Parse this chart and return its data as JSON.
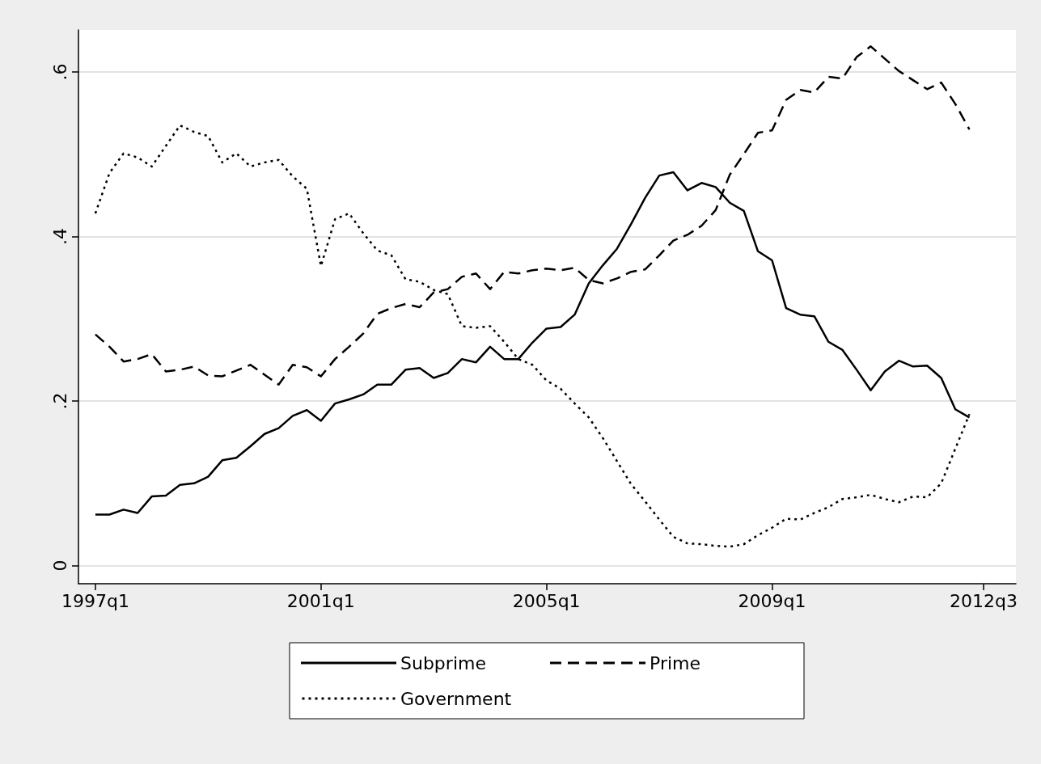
{
  "chart_data": {
    "type": "line",
    "categories": [
      "1997q1",
      null,
      null,
      null,
      null,
      null,
      null,
      null,
      null,
      null,
      null,
      null,
      null,
      null,
      null,
      null,
      "2001q1",
      null,
      null,
      null,
      null,
      null,
      null,
      null,
      null,
      null,
      null,
      null,
      null,
      null,
      null,
      null,
      "2005q1",
      null,
      null,
      null,
      null,
      null,
      null,
      null,
      null,
      null,
      null,
      null,
      null,
      null,
      null,
      null,
      "2009q1",
      null,
      null,
      null,
      null,
      null,
      null,
      null,
      null,
      null,
      null,
      null,
      null,
      null,
      null,
      "2012q3"
    ],
    "series": [
      {
        "name": "Subprime",
        "color": "#000000",
        "line_style": "solid",
        "values": [
          0.062,
          0.062,
          0.068,
          0.064,
          0.084,
          0.085,
          0.098,
          0.1,
          0.108,
          0.128,
          0.131,
          0.145,
          0.16,
          0.167,
          0.182,
          0.189,
          0.176,
          0.197,
          0.202,
          0.208,
          0.22,
          0.22,
          0.238,
          0.24,
          0.228,
          0.234,
          0.251,
          0.247,
          0.266,
          0.251,
          0.251,
          0.271,
          0.288,
          0.29,
          0.305,
          0.343,
          0.365,
          0.385,
          0.415,
          0.447,
          0.474,
          0.478,
          0.456,
          0.465,
          0.46,
          0.441,
          0.431,
          0.382,
          0.371,
          0.313,
          0.305,
          0.303,
          0.272,
          0.262,
          0.238,
          0.213,
          0.236,
          0.249,
          0.242,
          0.243,
          0.228,
          0.19,
          0.18,
          null
        ]
      },
      {
        "name": "Prime",
        "color": "#000000",
        "line_style": "dashed",
        "values": [
          0.281,
          0.266,
          0.248,
          0.251,
          0.257,
          0.236,
          0.238,
          0.242,
          0.231,
          0.23,
          0.237,
          0.244,
          0.232,
          0.22,
          0.244,
          0.241,
          0.23,
          0.251,
          0.266,
          0.282,
          0.306,
          0.313,
          0.318,
          0.314,
          0.332,
          0.336,
          0.351,
          0.355,
          0.336,
          0.357,
          0.355,
          0.359,
          0.361,
          0.359,
          0.362,
          0.347,
          0.343,
          0.349,
          0.357,
          0.36,
          0.377,
          0.395,
          0.402,
          0.413,
          0.432,
          0.475,
          0.5,
          0.526,
          0.529,
          0.566,
          0.578,
          0.575,
          0.594,
          0.592,
          0.618,
          0.631,
          0.616,
          0.601,
          0.59,
          0.579,
          0.587,
          0.561,
          0.53,
          null
        ]
      },
      {
        "name": "Government",
        "color": "#000000",
        "line_style": "dotted",
        "values": [
          0.428,
          0.477,
          0.501,
          0.496,
          0.485,
          0.51,
          0.535,
          0.527,
          0.522,
          0.49,
          0.501,
          0.485,
          0.49,
          0.493,
          0.473,
          0.458,
          0.364,
          0.421,
          0.428,
          0.404,
          0.383,
          0.377,
          0.348,
          0.345,
          0.335,
          0.33,
          0.291,
          0.289,
          0.291,
          0.272,
          0.251,
          0.244,
          0.225,
          0.215,
          0.197,
          0.18,
          0.155,
          0.127,
          0.099,
          0.078,
          0.056,
          0.035,
          0.027,
          0.026,
          0.024,
          0.023,
          0.026,
          0.037,
          0.046,
          0.057,
          0.056,
          0.064,
          0.071,
          0.081,
          0.083,
          0.086,
          0.081,
          0.077,
          0.084,
          0.083,
          0.1,
          0.142,
          0.184,
          null
        ]
      }
    ],
    "ylim": [
      -0.022,
      0.651
    ],
    "yticks": [
      {
        "value": 0,
        "label": "0"
      },
      {
        "value": 0.2,
        "label": ".2"
      },
      {
        "value": 0.4,
        "label": ".4"
      },
      {
        "value": 0.6,
        "label": ".6"
      }
    ],
    "grid": "y",
    "legend": "bottom"
  }
}
